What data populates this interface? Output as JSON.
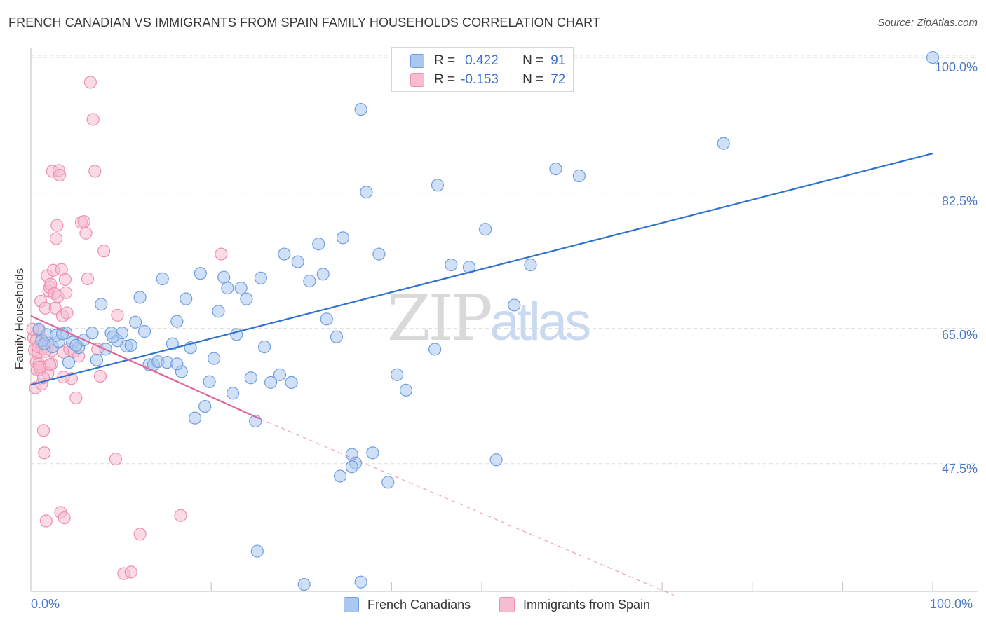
{
  "title": "FRENCH CANADIAN VS IMMIGRANTS FROM SPAIN FAMILY HOUSEHOLDS CORRELATION CHART",
  "source": "Source: ZipAtlas.com",
  "watermark": {
    "zip": "ZIP",
    "atlas": "atlas"
  },
  "legend": {
    "r_label": "R =",
    "n_label": "N =",
    "french": {
      "r": "0.422",
      "n": "91"
    },
    "spain": {
      "r": "-0.153",
      "n": "72"
    }
  },
  "colors": {
    "blue_fill": "#aac8f0",
    "blue_stroke": "#6f9ee0",
    "blue_line": "#2f72cf",
    "pink_fill": "#f6bccf",
    "pink_stroke": "#ee8fb0",
    "pink_line": "#e0659a",
    "grid": "#dcdcdc",
    "tick_text": "#4a78c6"
  },
  "chart_data": {
    "type": "scatter",
    "title": "FRENCH CANADIAN VS IMMIGRANTS FROM SPAIN FAMILY HOUSEHOLDS CORRELATION CHART",
    "xlabel": "",
    "ylabel": "Family Households",
    "xlim": [
      0,
      100
    ],
    "ylim": [
      31,
      102
    ],
    "x_tick_labels": [
      "0.0%",
      "100.0%"
    ],
    "y_ticks": [
      {
        "value": 100,
        "label": "100.0%"
      },
      {
        "value": 82.5,
        "label": "82.5%"
      },
      {
        "value": 65,
        "label": "65.0%"
      },
      {
        "value": 47.5,
        "label": "47.5%"
      }
    ],
    "series": [
      {
        "name": "French Canadians",
        "r": 0.422,
        "n": 91,
        "trend": {
          "x0": 0,
          "y0": 57.7,
          "x1": 100,
          "y1": 87.6
        },
        "points": [
          [
            0.9,
            64.9
          ],
          [
            1.2,
            63.4
          ],
          [
            1.8,
            64.2
          ],
          [
            2.4,
            62.6
          ],
          [
            3.1,
            63.3
          ],
          [
            3.9,
            64.4
          ],
          [
            4.6,
            63.2
          ],
          [
            5.3,
            62.5
          ],
          [
            5.9,
            63.5
          ],
          [
            6.8,
            64.4
          ],
          [
            7.3,
            60.9
          ],
          [
            7.8,
            68.1
          ],
          [
            8.3,
            62.3
          ],
          [
            8.9,
            64.4
          ],
          [
            9.6,
            63.4
          ],
          [
            10.1,
            64.4
          ],
          [
            10.6,
            62.7
          ],
          [
            11.1,
            62.8
          ],
          [
            11.6,
            65.8
          ],
          [
            12.1,
            69.0
          ],
          [
            12.6,
            64.6
          ],
          [
            13.1,
            60.3
          ],
          [
            13.6,
            60.3
          ],
          [
            14.1,
            60.7
          ],
          [
            14.6,
            71.4
          ],
          [
            15.1,
            60.6
          ],
          [
            15.7,
            63.0
          ],
          [
            16.2,
            65.9
          ],
          [
            16.7,
            59.4
          ],
          [
            17.2,
            68.8
          ],
          [
            17.7,
            62.5
          ],
          [
            18.2,
            53.4
          ],
          [
            18.8,
            72.1
          ],
          [
            19.3,
            54.9
          ],
          [
            19.8,
            58.1
          ],
          [
            20.3,
            61.1
          ],
          [
            20.8,
            67.2
          ],
          [
            21.4,
            71.6
          ],
          [
            21.8,
            70.2
          ],
          [
            22.4,
            56.6
          ],
          [
            22.8,
            64.2
          ],
          [
            23.3,
            70.2
          ],
          [
            23.9,
            68.8
          ],
          [
            24.4,
            58.6
          ],
          [
            24.9,
            53.0
          ],
          [
            25.5,
            71.5
          ],
          [
            25.9,
            62.6
          ],
          [
            26.6,
            58.0
          ],
          [
            27.6,
            59.0
          ],
          [
            28.1,
            74.6
          ],
          [
            28.9,
            58.0
          ],
          [
            29.6,
            73.6
          ],
          [
            30.9,
            71.1
          ],
          [
            31.9,
            75.9
          ],
          [
            32.4,
            72.0
          ],
          [
            32.8,
            66.2
          ],
          [
            33.9,
            63.9
          ],
          [
            34.6,
            76.7
          ],
          [
            35.6,
            48.7
          ],
          [
            36.0,
            47.6
          ],
          [
            36.6,
            93.3
          ],
          [
            37.2,
            82.6
          ],
          [
            37.9,
            48.9
          ],
          [
            38.6,
            74.6
          ],
          [
            39.6,
            45.1
          ],
          [
            40.6,
            59.0
          ],
          [
            41.6,
            57.0
          ],
          [
            44.8,
            62.3
          ],
          [
            45.1,
            83.5
          ],
          [
            46.6,
            73.2
          ],
          [
            48.6,
            72.9
          ],
          [
            50.4,
            77.8
          ],
          [
            51.6,
            48.0
          ],
          [
            53.6,
            68.0
          ],
          [
            55.4,
            73.2
          ],
          [
            58.2,
            85.6
          ],
          [
            60.8,
            84.7
          ],
          [
            76.8,
            88.9
          ],
          [
            100.0,
            100.0
          ],
          [
            25.1,
            36.2
          ],
          [
            30.3,
            31.9
          ],
          [
            36.6,
            32.2
          ],
          [
            34.3,
            45.9
          ],
          [
            35.6,
            47.1
          ],
          [
            16.2,
            60.4
          ],
          [
            9.1,
            63.9
          ],
          [
            5.0,
            62.8
          ],
          [
            4.2,
            60.6
          ],
          [
            2.8,
            64.1
          ],
          [
            1.5,
            63.0
          ],
          [
            3.5,
            64.3
          ]
        ]
      },
      {
        "name": "Immigrants from Spain",
        "r": -0.153,
        "n": 72,
        "trend": {
          "x0": 0,
          "y0": 66.6,
          "x1": 25.4,
          "y1": 53.3
        },
        "trend_dashed": {
          "x0": 25.4,
          "y0": 53.3,
          "x1": 71.3,
          "y1": 30.5
        },
        "points": [
          [
            0.3,
            63.8
          ],
          [
            0.4,
            62.2
          ],
          [
            0.5,
            57.3
          ],
          [
            0.6,
            60.6
          ],
          [
            0.7,
            59.6
          ],
          [
            0.8,
            61.8
          ],
          [
            0.9,
            64.7
          ],
          [
            1.0,
            59.6
          ],
          [
            1.1,
            68.5
          ],
          [
            1.2,
            57.8
          ],
          [
            1.3,
            62.4
          ],
          [
            1.4,
            51.8
          ],
          [
            1.5,
            48.9
          ],
          [
            1.6,
            67.6
          ],
          [
            1.7,
            40.1
          ],
          [
            1.8,
            71.8
          ],
          [
            1.9,
            59.2
          ],
          [
            2.0,
            69.8
          ],
          [
            2.1,
            70.3
          ],
          [
            2.2,
            70.7
          ],
          [
            2.3,
            62.1
          ],
          [
            2.4,
            85.3
          ],
          [
            2.5,
            72.5
          ],
          [
            2.6,
            69.5
          ],
          [
            2.7,
            67.6
          ],
          [
            2.8,
            76.6
          ],
          [
            2.9,
            78.3
          ],
          [
            3.0,
            69.1
          ],
          [
            3.1,
            85.4
          ],
          [
            3.2,
            84.8
          ],
          [
            3.3,
            41.2
          ],
          [
            3.4,
            72.6
          ],
          [
            3.5,
            66.6
          ],
          [
            3.6,
            61.9
          ],
          [
            3.7,
            40.5
          ],
          [
            3.8,
            71.3
          ],
          [
            3.9,
            69.6
          ],
          [
            4.0,
            67.0
          ],
          [
            4.3,
            62.3
          ],
          [
            4.5,
            58.5
          ],
          [
            4.8,
            62.0
          ],
          [
            5.0,
            56.0
          ],
          [
            5.3,
            61.4
          ],
          [
            5.6,
            78.7
          ],
          [
            5.9,
            78.8
          ],
          [
            6.1,
            77.3
          ],
          [
            6.3,
            71.4
          ],
          [
            6.6,
            96.8
          ],
          [
            6.9,
            92.0
          ],
          [
            7.1,
            85.3
          ],
          [
            7.4,
            62.3
          ],
          [
            7.7,
            58.8
          ],
          [
            8.1,
            75.0
          ],
          [
            9.6,
            66.7
          ],
          [
            9.4,
            48.1
          ],
          [
            10.3,
            33.3
          ],
          [
            11.1,
            33.5
          ],
          [
            12.1,
            38.4
          ],
          [
            16.6,
            40.8
          ],
          [
            21.1,
            74.6
          ],
          [
            0.2,
            64.9
          ],
          [
            0.6,
            63.4
          ],
          [
            0.9,
            60.4
          ],
          [
            1.2,
            63.6
          ],
          [
            1.9,
            63.1
          ],
          [
            2.3,
            60.4
          ],
          [
            1.4,
            58.6
          ],
          [
            2.1,
            60.3
          ],
          [
            0.8,
            62.6
          ],
          [
            1.6,
            62.0
          ],
          [
            3.6,
            58.7
          ],
          [
            1.0,
            60.0
          ]
        ]
      }
    ]
  }
}
